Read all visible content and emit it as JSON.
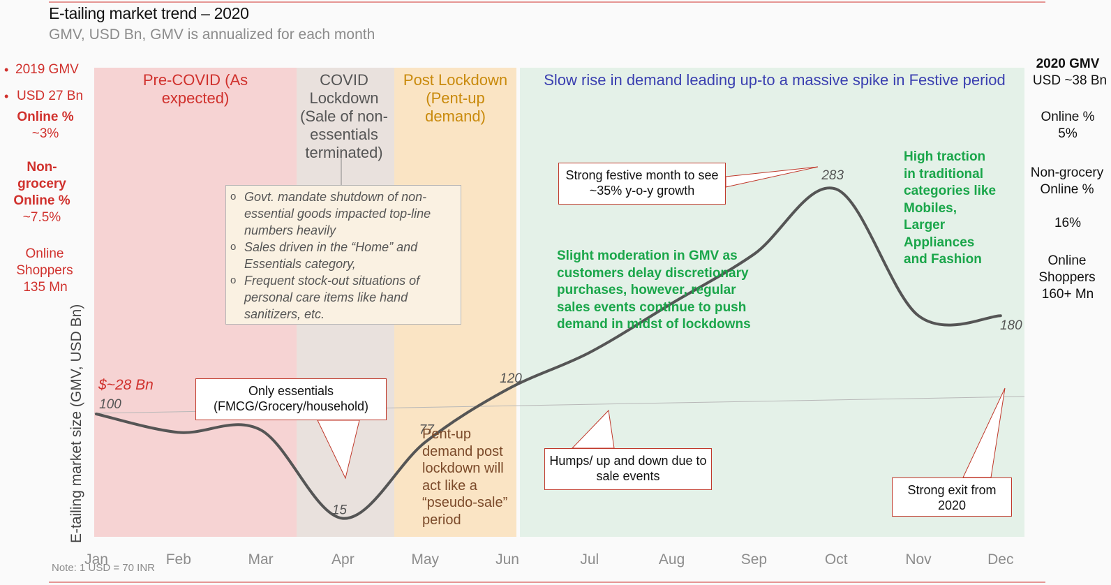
{
  "header": {
    "title": "E-tailing market trend – 2020",
    "subtitle": "GMV, USD Bn, GMV is annualized for each month",
    "note": "Note: 1 USD = 70 INR"
  },
  "left_stats": {
    "gmv_label": "2019 GMV",
    "gmv_value": "USD 27 Bn",
    "online_label": "Online %",
    "online_value": "~3%",
    "nongrocery_label": "Non-grocery Online %",
    "nongrocery_value": "~7.5%",
    "shoppers_label": "Online Shoppers",
    "shoppers_value": "135 Mn"
  },
  "right_stats": {
    "gmv_label": "2020 GMV",
    "gmv_value": "USD ~38 Bn",
    "online_label": "Online %",
    "online_value": "5%",
    "nongrocery_label": "Non-grocery Online %",
    "nongrocery_value": "16%",
    "shoppers_label": "Online Shoppers",
    "shoppers_value": "160+ Mn"
  },
  "bands": {
    "precovid": "Pre-COVID (As expected)",
    "covid": "COVID Lockdown (Sale of non-essentials terminated)",
    "post": "Post Lockdown (Pent-up demand)",
    "slow_rise": "Slow rise in demand leading up-to a massive spike in Festive period"
  },
  "annotations": {
    "covid_bullets": [
      "Govt. mandate shutdown of non-essential goods impacted top-line numbers heavily",
      "Sales driven in the “Home” and Essentials category,",
      "Frequent stock-out situations of personal care items like hand sanitizers, etc."
    ],
    "only_essentials": "Only essentials (FMCG/Grocery/household)",
    "pentup_text": "Pent-up demand post lockdown will act like a “pseudo-sale” period",
    "humps": "Humps/ up and down due to sale events",
    "festive": "Strong festive month to see ~35% y-o-y growth",
    "moderation": "Slight moderation in GMV as customers delay discretionary purchases, however, regular sales events continue to push demand in midst of lockdowns",
    "traction": "High traction in traditional categories like Mobiles, Larger Appliances and Fashion",
    "strong_exit": "Strong exit from 2020",
    "baseline_label": "$~28 Bn"
  },
  "colors": {
    "precovid": "#f6d3d3",
    "covid": "#e9e1dd",
    "post": "#fae4c4",
    "slow_rise": "#e4f1e8",
    "line": "#555555",
    "accent_red": "#d0312d",
    "green": "#1aa64a",
    "blue": "#3a3fb0",
    "orange": "#c98a0c"
  },
  "chart_data": {
    "type": "line",
    "title": "E-tailing market trend – 2020",
    "ylabel": "E-tailing market size (GMV, USD Bn)",
    "categories": [
      "Jan",
      "Feb",
      "Mar",
      "Apr",
      "May",
      "Jun",
      "Jul",
      "Aug",
      "Sep",
      "Oct",
      "Nov",
      "Dec"
    ],
    "series": [
      {
        "values": [
          100,
          85,
          87,
          15,
          77,
          120,
          150,
          190,
          230,
          283,
          180,
          180
        ]
      }
    ],
    "data_labels": [
      {
        "month": "Jan",
        "value": 100,
        "label": "100"
      },
      {
        "month": "Apr",
        "value": 15,
        "label": "15"
      },
      {
        "month": "May",
        "value": 77,
        "label": "77"
      },
      {
        "month": "Jun",
        "value": 120,
        "label": "120"
      },
      {
        "month": "Oct",
        "value": 283,
        "label": "283"
      },
      {
        "month": "Dec",
        "value": 180,
        "label": "180"
      }
    ],
    "reference_line": {
      "value": 100,
      "label": "$~28 Bn"
    },
    "ylim": [
      0,
      300
    ],
    "grid": false
  }
}
